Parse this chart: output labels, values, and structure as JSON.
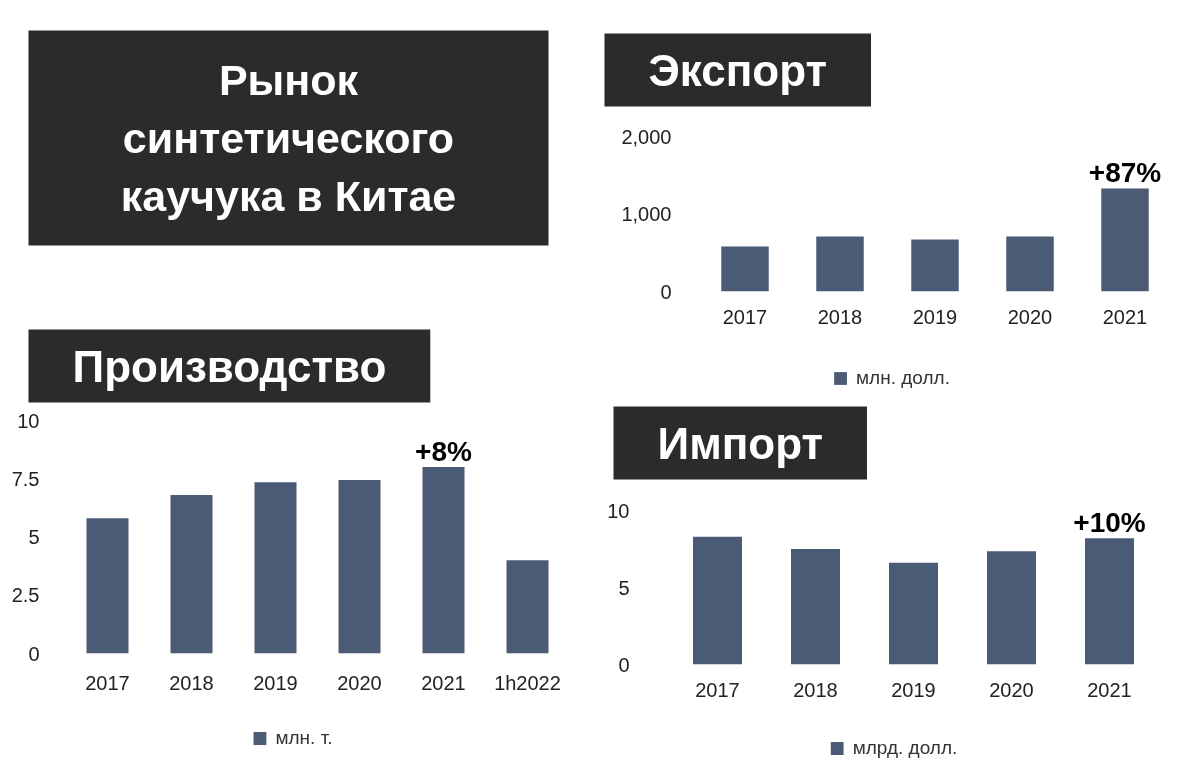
{
  "chart_data": [
    {
      "type": "other",
      "title": "Рынок синтетического каучука в Китае"
    },
    {
      "type": "bar",
      "title": "Экспорт",
      "categories": [
        "2017",
        "2018",
        "2019",
        "2020",
        "2021"
      ],
      "series": [
        {
          "name": "млн. долл.",
          "color": "#4b5b75",
          "values": [
            580,
            710,
            670,
            710,
            1330
          ]
        }
      ],
      "ylim": [
        0,
        2000
      ],
      "yticks": [
        0,
        {
          "value": 1000,
          "label": "1,000"
        },
        {
          "value": 2000,
          "label": "2,000"
        }
      ],
      "legend": "bottom",
      "annotations": [
        {
          "text": "+87%",
          "x": "2021",
          "y": 1330
        }
      ]
    },
    {
      "type": "bar",
      "title": "Производство",
      "categories": [
        "2017",
        "2018",
        "2019",
        "2020",
        "2021",
        "1h2022"
      ],
      "series": [
        {
          "name": "млн. т.",
          "color": "#4b5b75",
          "values": [
            5.8,
            6.8,
            7.35,
            7.45,
            8.0,
            4.0
          ]
        }
      ],
      "ylim": [
        0,
        10
      ],
      "yticks": [
        0,
        2.5,
        5,
        7.5,
        10
      ],
      "legend": "bottom",
      "annotations": [
        {
          "text": "+8%",
          "x": "2021",
          "y": 8.0
        }
      ]
    },
    {
      "type": "bar",
      "title": "Импорт",
      "categories": [
        "2017",
        "2018",
        "2019",
        "2020",
        "2021"
      ],
      "series": [
        {
          "name": "млрд. долл.",
          "color": "#4b5b75",
          "values": [
            8.3,
            7.5,
            6.6,
            7.35,
            8.2
          ]
        }
      ],
      "ylim": [
        0,
        10
      ],
      "yticks": [
        0,
        5,
        10
      ],
      "legend": "bottom",
      "annotations": [
        {
          "text": "+10%",
          "x": "2021",
          "y": 8.2
        }
      ]
    }
  ]
}
